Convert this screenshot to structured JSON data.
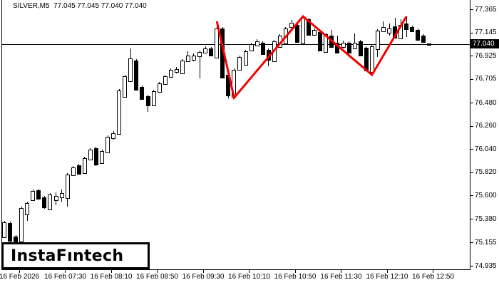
{
  "header": {
    "title": "SILVER,M5  77.045 77.045 77.040 77.040",
    "symbol": "SILVER",
    "timeframe": "M5",
    "ohlc_readout": {
      "open": "77.045",
      "high": "77.045",
      "low": "77.040",
      "close": "77.040"
    }
  },
  "branding": {
    "logo_text": "InstaFıntech"
  },
  "price_axis": {
    "side": "right",
    "tick_labels": [
      "77.365",
      "77.145",
      "76.925",
      "76.705",
      "76.480",
      "76.260",
      "76.040",
      "75.820",
      "75.600",
      "75.380",
      "75.155",
      "74.935"
    ],
    "current_price": "77.040"
  },
  "time_axis": {
    "labels": [
      "16 Feb 2026",
      "16 Feb 07:30",
      "16 Feb 08:10",
      "16 Feb 08:50",
      "16 Feb 09:30",
      "16 Feb 10:10",
      "16 Feb 10:50",
      "16 Feb 11:30",
      "16 Feb 12:10",
      "16 Feb 12:50"
    ]
  },
  "colors": {
    "background": "#FFFFFF",
    "foreground": "#000000",
    "bull_body": "#FFFFFF",
    "bear_body": "#000000",
    "candle_outline": "#000000",
    "zigzag_line": "#F40000",
    "current_price_line": "#000000",
    "current_price_label_bg": "#000000",
    "current_price_label_fg": "#FFFFFF"
  },
  "chart_data": {
    "type": "candlestick",
    "title": "SILVER,M5  77.045 77.045 77.040 77.040",
    "symbol": "SILVER",
    "timeframe": "M5",
    "grid": false,
    "y_range": [
      74.9,
      77.45
    ],
    "y_ticks": [
      77.365,
      77.145,
      76.925,
      76.705,
      76.48,
      76.26,
      76.04,
      75.82,
      75.6,
      75.38,
      75.155,
      74.935
    ],
    "x_labels": [
      "16 Feb 2026",
      "16 Feb 07:30",
      "16 Feb 08:10",
      "16 Feb 08:50",
      "16 Feb 09:30",
      "16 Feb 10:10",
      "16 Feb 10:50",
      "16 Feb 11:30",
      "16 Feb 12:10",
      "16 Feb 12:50"
    ],
    "current_price": 77.04,
    "candles": [
      {
        "o": 75.215,
        "h": 75.363,
        "l": 75.201,
        "c": 75.35
      },
      {
        "o": 75.343,
        "h": 75.357,
        "l": 75.148,
        "c": 75.181
      },
      {
        "o": 75.215,
        "h": 75.228,
        "l": 75.127,
        "c": 75.161
      },
      {
        "o": 75.174,
        "h": 75.498,
        "l": 75.161,
        "c": 75.485
      },
      {
        "o": 75.431,
        "h": 75.546,
        "l": 75.363,
        "c": 75.532
      },
      {
        "o": 75.566,
        "h": 75.66,
        "l": 75.552,
        "c": 75.647
      },
      {
        "o": 75.654,
        "h": 75.667,
        "l": 75.566,
        "c": 75.58
      },
      {
        "o": 75.586,
        "h": 75.6,
        "l": 75.478,
        "c": 75.498
      },
      {
        "o": 75.478,
        "h": 75.627,
        "l": 75.465,
        "c": 75.613
      },
      {
        "o": 75.566,
        "h": 75.633,
        "l": 75.512,
        "c": 75.6
      },
      {
        "o": 75.593,
        "h": 75.66,
        "l": 75.546,
        "c": 75.627
      },
      {
        "o": 75.586,
        "h": 75.816,
        "l": 75.498,
        "c": 75.802
      },
      {
        "o": 75.802,
        "h": 75.883,
        "l": 75.789,
        "c": 75.869
      },
      {
        "o": 75.89,
        "h": 75.903,
        "l": 75.802,
        "c": 75.816
      },
      {
        "o": 75.822,
        "h": 75.971,
        "l": 75.809,
        "c": 75.957
      },
      {
        "o": 75.951,
        "h": 76.052,
        "l": 75.937,
        "c": 76.038
      },
      {
        "o": 76.052,
        "h": 76.065,
        "l": 75.883,
        "c": 75.903
      },
      {
        "o": 75.917,
        "h": 76.038,
        "l": 75.903,
        "c": 76.025
      },
      {
        "o": 76.018,
        "h": 76.173,
        "l": 76.005,
        "c": 76.16
      },
      {
        "o": 76.153,
        "h": 76.214,
        "l": 76.133,
        "c": 76.194
      },
      {
        "o": 76.194,
        "h": 76.612,
        "l": 76.18,
        "c": 76.599
      },
      {
        "o": 76.545,
        "h": 76.747,
        "l": 76.531,
        "c": 76.734
      },
      {
        "o": 76.693,
        "h": 76.997,
        "l": 76.68,
        "c": 76.903
      },
      {
        "o": 76.882,
        "h": 76.896,
        "l": 76.599,
        "c": 76.612
      },
      {
        "o": 76.633,
        "h": 76.646,
        "l": 76.511,
        "c": 76.525
      },
      {
        "o": 76.545,
        "h": 76.558,
        "l": 76.396,
        "c": 76.464
      },
      {
        "o": 76.464,
        "h": 76.606,
        "l": 76.45,
        "c": 76.592
      },
      {
        "o": 76.592,
        "h": 76.68,
        "l": 76.579,
        "c": 76.666
      },
      {
        "o": 76.666,
        "h": 76.747,
        "l": 76.653,
        "c": 76.734
      },
      {
        "o": 76.734,
        "h": 76.808,
        "l": 76.72,
        "c": 76.795
      },
      {
        "o": 76.781,
        "h": 76.822,
        "l": 76.761,
        "c": 76.801
      },
      {
        "o": 76.768,
        "h": 76.896,
        "l": 76.754,
        "c": 76.882
      },
      {
        "o": 76.882,
        "h": 76.97,
        "l": 76.869,
        "c": 76.93
      },
      {
        "o": 76.896,
        "h": 76.95,
        "l": 76.876,
        "c": 76.93
      },
      {
        "o": 76.93,
        "h": 76.977,
        "l": 76.714,
        "c": 76.963
      },
      {
        "o": 76.963,
        "h": 77.017,
        "l": 76.95,
        "c": 76.997
      },
      {
        "o": 76.997,
        "h": 77.011,
        "l": 76.923,
        "c": 76.936
      },
      {
        "o": 76.916,
        "h": 77.254,
        "l": 76.903,
        "c": 77.186
      },
      {
        "o": 77.186,
        "h": 77.2,
        "l": 76.714,
        "c": 76.727
      },
      {
        "o": 76.747,
        "h": 76.761,
        "l": 76.525,
        "c": 76.558
      },
      {
        "o": 76.545,
        "h": 76.808,
        "l": 76.531,
        "c": 76.795
      },
      {
        "o": 76.801,
        "h": 76.93,
        "l": 76.788,
        "c": 76.916
      },
      {
        "o": 76.849,
        "h": 76.984,
        "l": 76.835,
        "c": 76.97
      },
      {
        "o": 76.984,
        "h": 77.051,
        "l": 76.97,
        "c": 77.038
      },
      {
        "o": 77.031,
        "h": 77.085,
        "l": 77.017,
        "c": 77.065
      },
      {
        "o": 77.051,
        "h": 77.065,
        "l": 76.936,
        "c": 76.95
      },
      {
        "o": 76.984,
        "h": 76.997,
        "l": 76.828,
        "c": 76.896
      },
      {
        "o": 76.882,
        "h": 77.078,
        "l": 76.869,
        "c": 77.065
      },
      {
        "o": 77.017,
        "h": 77.132,
        "l": 77.004,
        "c": 77.119
      },
      {
        "o": 77.051,
        "h": 77.2,
        "l": 77.038,
        "c": 77.186
      },
      {
        "o": 77.206,
        "h": 77.267,
        "l": 77.186,
        "c": 77.24
      },
      {
        "o": 77.22,
        "h": 77.233,
        "l": 77.051,
        "c": 77.065
      },
      {
        "o": 77.051,
        "h": 77.301,
        "l": 77.038,
        "c": 77.287
      },
      {
        "o": 77.274,
        "h": 77.287,
        "l": 77.119,
        "c": 77.132
      },
      {
        "o": 77.132,
        "h": 77.186,
        "l": 77.119,
        "c": 77.173
      },
      {
        "o": 77.152,
        "h": 77.166,
        "l": 76.97,
        "c": 76.984
      },
      {
        "o": 76.97,
        "h": 77.146,
        "l": 76.957,
        "c": 77.132
      },
      {
        "o": 77.119,
        "h": 77.173,
        "l": 77.004,
        "c": 77.017
      },
      {
        "o": 77.051,
        "h": 77.119,
        "l": 76.95,
        "c": 76.963
      },
      {
        "o": 77.017,
        "h": 77.071,
        "l": 76.997,
        "c": 77.051
      },
      {
        "o": 77.051,
        "h": 77.065,
        "l": 76.95,
        "c": 76.963
      },
      {
        "o": 77.004,
        "h": 77.139,
        "l": 76.991,
        "c": 77.051
      },
      {
        "o": 77.065,
        "h": 77.078,
        "l": 76.923,
        "c": 76.936
      },
      {
        "o": 77.004,
        "h": 77.017,
        "l": 76.781,
        "c": 76.795
      },
      {
        "o": 76.781,
        "h": 77.031,
        "l": 76.747,
        "c": 77.017
      },
      {
        "o": 76.997,
        "h": 77.179,
        "l": 76.916,
        "c": 77.166
      },
      {
        "o": 77.166,
        "h": 77.254,
        "l": 77.152,
        "c": 77.2
      },
      {
        "o": 77.152,
        "h": 77.233,
        "l": 77.119,
        "c": 77.186
      },
      {
        "o": 77.206,
        "h": 77.287,
        "l": 77.092,
        "c": 77.105
      },
      {
        "o": 77.098,
        "h": 77.274,
        "l": 77.085,
        "c": 77.22
      },
      {
        "o": 77.233,
        "h": 77.301,
        "l": 77.105,
        "c": 77.186
      },
      {
        "o": 77.2,
        "h": 77.213,
        "l": 77.152,
        "c": 77.166
      },
      {
        "o": 77.173,
        "h": 77.186,
        "l": 77.071,
        "c": 77.085
      },
      {
        "o": 77.119,
        "h": 77.132,
        "l": 77.051,
        "c": 77.065
      },
      {
        "o": 77.045,
        "h": 77.045,
        "l": 77.04,
        "c": 77.04
      }
    ],
    "zigzag_line": {
      "color": "#F40000",
      "points": [
        {
          "bar": 37,
          "price": 77.254
        },
        {
          "bar": 40,
          "price": 76.531
        },
        {
          "bar": 52,
          "price": 77.301
        },
        {
          "bar": 64,
          "price": 76.747
        },
        {
          "bar": 70,
          "price": 77.301
        }
      ]
    }
  }
}
